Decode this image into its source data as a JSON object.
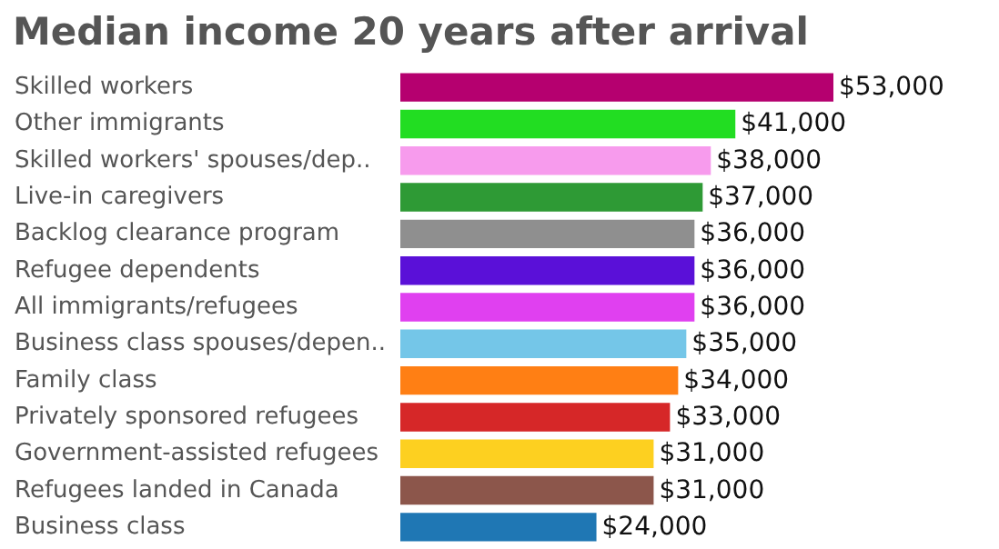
{
  "chart_data": {
    "type": "bar",
    "orientation": "horizontal",
    "title": "Median income 20 years after arrival",
    "categories": [
      "Skilled workers",
      "Other immigrants",
      "Skilled workers' spouses/dep..",
      "Live-in caregivers",
      "Backlog clearance program",
      "Refugee dependents",
      "All immigrants/refugees",
      "Business class spouses/depen..",
      "Family class",
      "Privately sponsored refugees",
      "Government-assisted refugees",
      "Refugees landed in Canada",
      "Business class"
    ],
    "values": [
      53000,
      41000,
      38000,
      37000,
      36000,
      36000,
      36000,
      35000,
      34000,
      33000,
      31000,
      31000,
      24000
    ],
    "colors": [
      "#b5006f",
      "#22dd22",
      "#f79bed",
      "#2e9a35",
      "#8f8f8f",
      "#5a10d8",
      "#e040f0",
      "#74c6e8",
      "#ff7f14",
      "#d62728",
      "#fdd020",
      "#8c564b",
      "#1f77b4"
    ],
    "value_labels": [
      "$53,000",
      "$41,000",
      "$38,000",
      "$37,000",
      "$36,000",
      "$36,000",
      "$36,000",
      "$35,000",
      "$34,000",
      "$33,000",
      "$31,000",
      "$31,000",
      "$24,000"
    ],
    "grid": false
  }
}
